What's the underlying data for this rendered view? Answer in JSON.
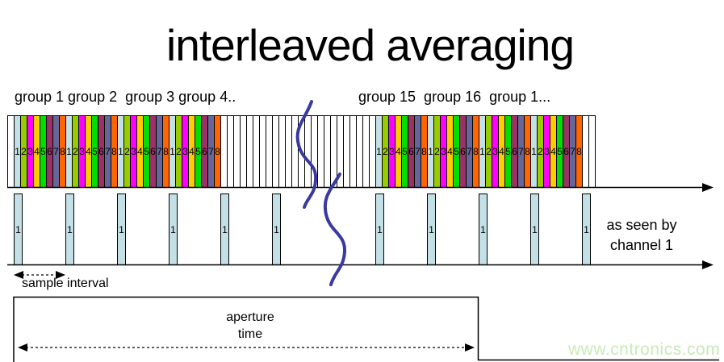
{
  "title": "interleaved averaging",
  "header": {
    "groups_left": "group 1 group 2  group 3 group 4..",
    "groups_right": "group 15  group 16  group 1..."
  },
  "strip": {
    "slot_numbers": [
      "1",
      "2",
      "3",
      "4",
      "5",
      "6",
      "7",
      "8"
    ],
    "left_colored_groups": 4,
    "right_colored_groups": 4,
    "leading_blank_slots": 1,
    "middle_blank_slots": 24,
    "trailing_blank_slots": 2
  },
  "sample_row": {
    "bar_label": "1",
    "bar_count": 12,
    "missing_bar_index": 6,
    "caption_line1": "as seen by",
    "caption_line2": "channel 1"
  },
  "annotations": {
    "sample_interval": "sample interval",
    "aperture_line1": "aperture",
    "aperture_line2": "time"
  },
  "watermark": "www.cntronics.com",
  "colors": {
    "slot_colors": [
      "#C2E0E5",
      "#99CC00",
      "#FF00FF",
      "#FFCC00",
      "#00DF00",
      "#993366",
      "#666699",
      "#FF6600"
    ],
    "sample_bar": "#C2E0E5",
    "break_squiggle": "#3939A0",
    "watermark_text": "#C8EAB8",
    "ink": "#000000"
  }
}
